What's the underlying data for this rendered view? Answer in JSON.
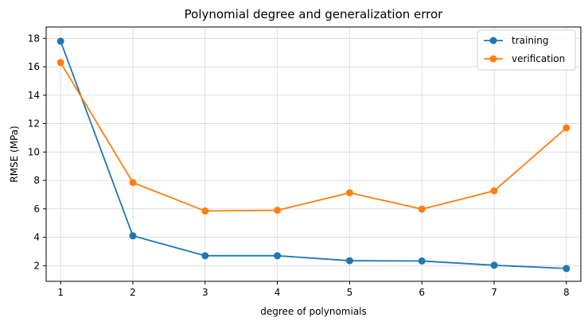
{
  "chart_data": {
    "type": "line",
    "title": "Polynomial degree and generalization error",
    "xlabel": "degree of polynomials",
    "ylabel": "RMSE (MPa)",
    "x": [
      1,
      2,
      3,
      4,
      5,
      6,
      7,
      8
    ],
    "xlim": [
      0.8,
      8.2
    ],
    "ylim": [
      0.9,
      18.8
    ],
    "xticks": [
      "1",
      "2",
      "3",
      "4",
      "5",
      "6",
      "7",
      "8"
    ],
    "yticks": [
      "2",
      "4",
      "6",
      "8",
      "10",
      "12",
      "14",
      "16",
      "18"
    ],
    "grid": true,
    "legend_position": "top-right",
    "series": [
      {
        "name": "training",
        "color": "#1f77b4",
        "values": [
          17.8,
          4.1,
          2.7,
          2.7,
          2.35,
          2.33,
          2.03,
          1.8
        ]
      },
      {
        "name": "verification",
        "color": "#ff7f0e",
        "values": [
          16.3,
          7.85,
          5.85,
          5.9,
          7.13,
          5.98,
          7.27,
          11.7
        ]
      }
    ]
  }
}
